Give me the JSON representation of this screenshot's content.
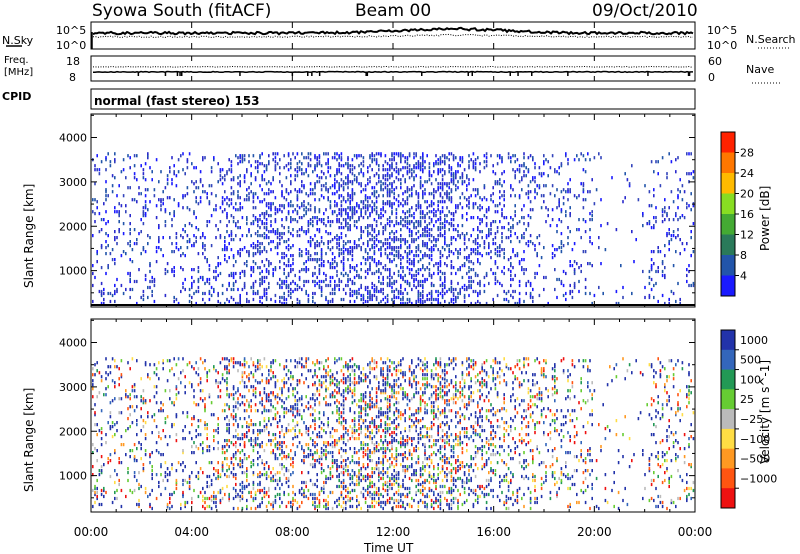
{
  "header": {
    "station": "Syowa South (fitACF)",
    "beam": "Beam 00",
    "date": "09/Oct/2010"
  },
  "noise_panel": {
    "left_label": "N.Sky",
    "right_label": "N.Search",
    "left_ticks": [
      "10^5",
      "10^0"
    ],
    "right_ticks": [
      "10^5",
      "10^0"
    ]
  },
  "freq_panel": {
    "left_label_line1": "Freq.",
    "left_label_line2": "[MHz]",
    "right_label": "Nave",
    "left_ticks": [
      "18",
      "8"
    ],
    "right_ticks": [
      "60",
      "0"
    ]
  },
  "cpid": {
    "label": "CPID",
    "value": "normal (fast stereo) 153"
  },
  "chart_data": [
    {
      "type": "heatmap",
      "name": "power",
      "ylabel": "Slant Range [km]",
      "yticks": [
        1000,
        2000,
        3000,
        4000
      ],
      "ylim": [
        180,
        4530
      ],
      "colorbar_label": "Power [dB]",
      "colorbar_ticks": [
        "4",
        "8",
        "12",
        "16",
        "20",
        "24",
        "28"
      ],
      "colorbar_colors": [
        "#1a1aff",
        "#2255aa",
        "#2a7a5a",
        "#44aa33",
        "#88dd22",
        "#ffbb00",
        "#ff7700",
        "#ff2200"
      ]
    },
    {
      "type": "heatmap",
      "name": "velocity",
      "ylabel": "Slant Range [km]",
      "yticks": [
        1000,
        2000,
        3000,
        4000
      ],
      "ylim": [
        180,
        4530
      ],
      "colorbar_label": "Velocity [m s^-1]",
      "colorbar_ticks": [
        "1000",
        "500",
        "100",
        "25",
        "−25",
        "−100",
        "−500",
        "−1000"
      ],
      "colorbar_colors": [
        "#2233aa",
        "#3366bb",
        "#229955",
        "#66cc33",
        "#bbbbbb",
        "#ffdd44",
        "#ff9922",
        "#ff5511",
        "#ee1111"
      ]
    }
  ],
  "time_axis": {
    "xlabel": "Time UT",
    "ticks": [
      "00:00",
      "04:00",
      "08:00",
      "12:00",
      "16:00",
      "20:00",
      "00:00"
    ]
  }
}
